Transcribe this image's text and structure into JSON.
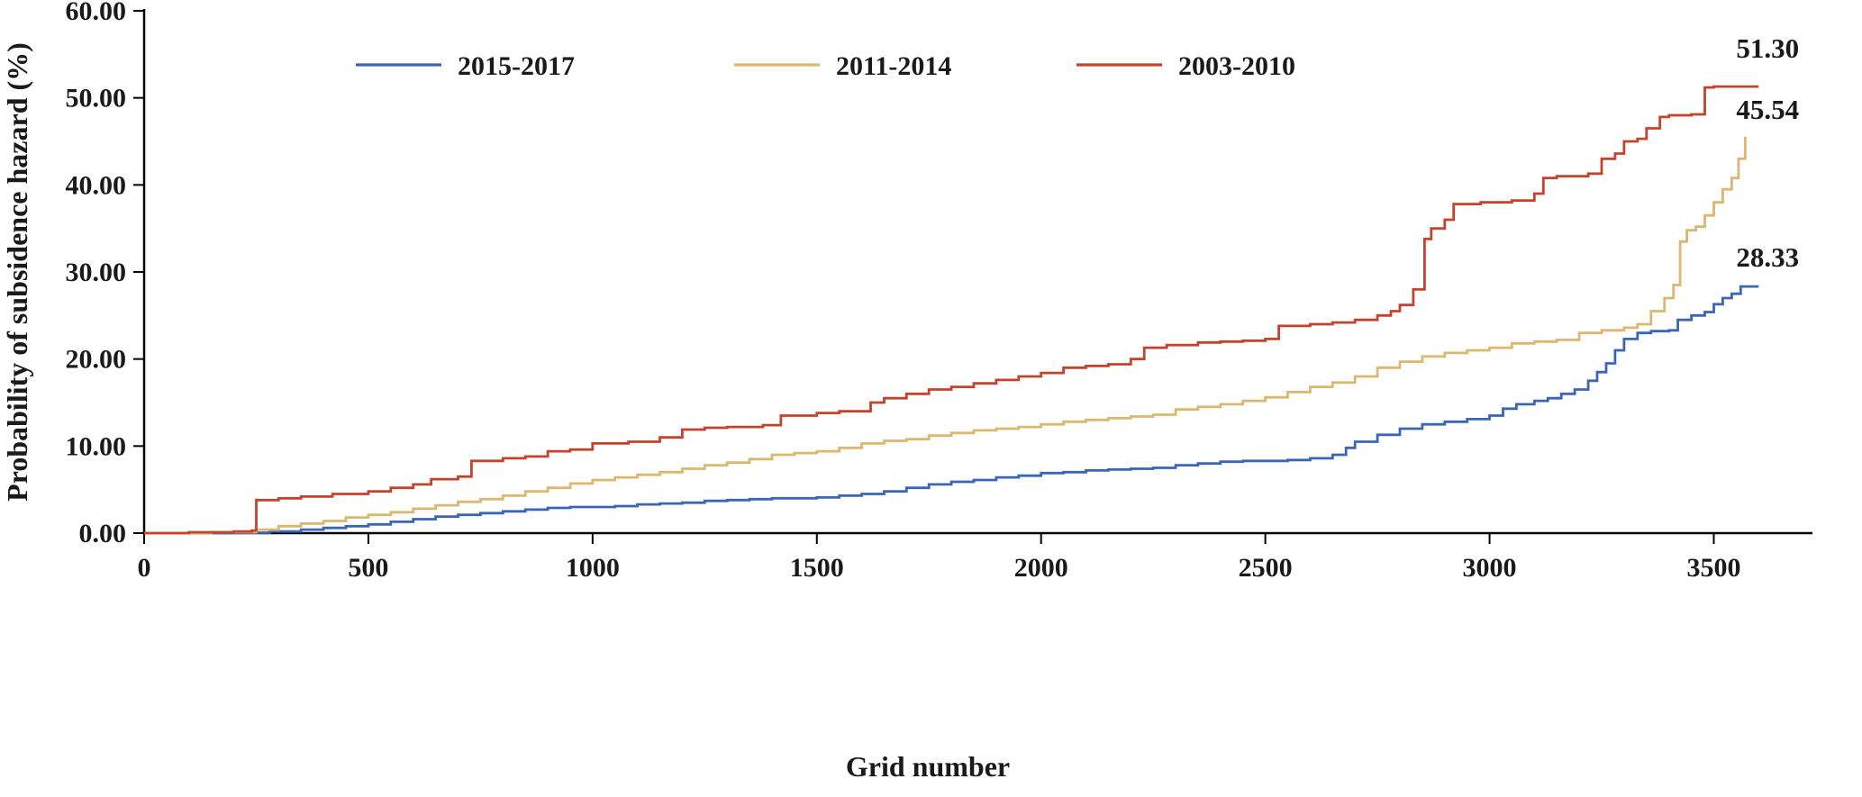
{
  "chart_data": {
    "type": "line",
    "title": "",
    "xlabel": "Grid number",
    "ylabel": "Probability of subsidence hazard (%)",
    "xlim": [
      0,
      3720
    ],
    "ylim": [
      0,
      60
    ],
    "x_ticks": [
      0,
      500,
      1000,
      1500,
      2000,
      2500,
      3000,
      3500
    ],
    "y_ticks": [
      "0.00",
      "10.00",
      "20.00",
      "30.00",
      "40.00",
      "50.00",
      "60.00"
    ],
    "y_tick_values": [
      0,
      10,
      20,
      30,
      40,
      50,
      60
    ],
    "grid": false,
    "legend_position": "top-inside",
    "interpolation": "step-after",
    "series": [
      {
        "name": "2015-2017",
        "color": "#3B66B5",
        "end_label": "28.33",
        "end_label_pos": [
          3620,
          30.6
        ],
        "points": [
          [
            0,
            0
          ],
          [
            200,
            0.05
          ],
          [
            280,
            0.2
          ],
          [
            350,
            0.4
          ],
          [
            400,
            0.6
          ],
          [
            450,
            0.8
          ],
          [
            500,
            1.0
          ],
          [
            550,
            1.3
          ],
          [
            600,
            1.6
          ],
          [
            650,
            1.9
          ],
          [
            700,
            2.1
          ],
          [
            750,
            2.3
          ],
          [
            800,
            2.5
          ],
          [
            850,
            2.7
          ],
          [
            900,
            2.9
          ],
          [
            950,
            3.0
          ],
          [
            1050,
            3.1
          ],
          [
            1100,
            3.3
          ],
          [
            1150,
            3.4
          ],
          [
            1200,
            3.5
          ],
          [
            1250,
            3.7
          ],
          [
            1300,
            3.8
          ],
          [
            1350,
            3.9
          ],
          [
            1400,
            4.0
          ],
          [
            1500,
            4.1
          ],
          [
            1550,
            4.3
          ],
          [
            1600,
            4.5
          ],
          [
            1650,
            4.8
          ],
          [
            1700,
            5.2
          ],
          [
            1750,
            5.6
          ],
          [
            1800,
            5.9
          ],
          [
            1850,
            6.1
          ],
          [
            1900,
            6.4
          ],
          [
            1950,
            6.6
          ],
          [
            2000,
            6.9
          ],
          [
            2050,
            7.0
          ],
          [
            2100,
            7.2
          ],
          [
            2150,
            7.3
          ],
          [
            2200,
            7.4
          ],
          [
            2250,
            7.5
          ],
          [
            2300,
            7.8
          ],
          [
            2350,
            8.0
          ],
          [
            2400,
            8.2
          ],
          [
            2450,
            8.3
          ],
          [
            2550,
            8.4
          ],
          [
            2600,
            8.6
          ],
          [
            2650,
            9.0
          ],
          [
            2680,
            9.8
          ],
          [
            2700,
            10.5
          ],
          [
            2750,
            11.3
          ],
          [
            2800,
            12.0
          ],
          [
            2850,
            12.5
          ],
          [
            2900,
            12.8
          ],
          [
            2950,
            13.1
          ],
          [
            3000,
            13.5
          ],
          [
            3030,
            14.3
          ],
          [
            3060,
            14.8
          ],
          [
            3100,
            15.2
          ],
          [
            3130,
            15.5
          ],
          [
            3160,
            16.0
          ],
          [
            3190,
            16.5
          ],
          [
            3220,
            17.5
          ],
          [
            3240,
            18.5
          ],
          [
            3260,
            19.5
          ],
          [
            3280,
            21.0
          ],
          [
            3300,
            22.3
          ],
          [
            3330,
            23.0
          ],
          [
            3360,
            23.2
          ],
          [
            3400,
            23.3
          ],
          [
            3420,
            24.5
          ],
          [
            3450,
            25.0
          ],
          [
            3480,
            25.4
          ],
          [
            3500,
            26.3
          ],
          [
            3520,
            27.0
          ],
          [
            3540,
            27.5
          ],
          [
            3560,
            28.33
          ],
          [
            3600,
            28.33
          ]
        ]
      },
      {
        "name": "2011-2014",
        "color": "#DCB76F",
        "end_label": "45.54",
        "end_label_pos": [
          3620,
          47.6
        ],
        "points": [
          [
            0,
            0
          ],
          [
            150,
            0.1
          ],
          [
            250,
            0.4
          ],
          [
            300,
            0.8
          ],
          [
            350,
            1.1
          ],
          [
            400,
            1.4
          ],
          [
            450,
            1.8
          ],
          [
            500,
            2.1
          ],
          [
            550,
            2.4
          ],
          [
            600,
            2.8
          ],
          [
            650,
            3.2
          ],
          [
            700,
            3.6
          ],
          [
            750,
            3.9
          ],
          [
            800,
            4.3
          ],
          [
            850,
            4.8
          ],
          [
            900,
            5.2
          ],
          [
            950,
            5.7
          ],
          [
            1000,
            6.1
          ],
          [
            1050,
            6.4
          ],
          [
            1100,
            6.7
          ],
          [
            1150,
            7.0
          ],
          [
            1200,
            7.4
          ],
          [
            1250,
            7.8
          ],
          [
            1300,
            8.1
          ],
          [
            1350,
            8.5
          ],
          [
            1400,
            9.0
          ],
          [
            1450,
            9.2
          ],
          [
            1500,
            9.4
          ],
          [
            1550,
            9.8
          ],
          [
            1600,
            10.3
          ],
          [
            1650,
            10.6
          ],
          [
            1700,
            10.8
          ],
          [
            1750,
            11.2
          ],
          [
            1800,
            11.5
          ],
          [
            1850,
            11.8
          ],
          [
            1900,
            12.0
          ],
          [
            1950,
            12.2
          ],
          [
            2000,
            12.5
          ],
          [
            2050,
            12.8
          ],
          [
            2100,
            13.0
          ],
          [
            2150,
            13.2
          ],
          [
            2200,
            13.4
          ],
          [
            2250,
            13.6
          ],
          [
            2300,
            14.2
          ],
          [
            2350,
            14.5
          ],
          [
            2400,
            14.8
          ],
          [
            2450,
            15.2
          ],
          [
            2500,
            15.6
          ],
          [
            2550,
            16.2
          ],
          [
            2600,
            16.8
          ],
          [
            2650,
            17.3
          ],
          [
            2700,
            18.0
          ],
          [
            2750,
            19.0
          ],
          [
            2800,
            19.7
          ],
          [
            2850,
            20.3
          ],
          [
            2900,
            20.7
          ],
          [
            2950,
            21.0
          ],
          [
            3000,
            21.3
          ],
          [
            3050,
            21.8
          ],
          [
            3100,
            22.0
          ],
          [
            3150,
            22.2
          ],
          [
            3200,
            23.0
          ],
          [
            3250,
            23.3
          ],
          [
            3300,
            23.6
          ],
          [
            3330,
            24.0
          ],
          [
            3360,
            25.5
          ],
          [
            3390,
            27.0
          ],
          [
            3410,
            28.5
          ],
          [
            3425,
            33.5
          ],
          [
            3440,
            34.8
          ],
          [
            3460,
            35.2
          ],
          [
            3480,
            36.5
          ],
          [
            3500,
            38.0
          ],
          [
            3520,
            39.5
          ],
          [
            3540,
            40.8
          ],
          [
            3555,
            43.0
          ],
          [
            3570,
            45.54
          ]
        ]
      },
      {
        "name": "2003-2010",
        "color": "#C5432D",
        "end_label": "51.30",
        "end_label_pos": [
          3620,
          54.6
        ],
        "points": [
          [
            0,
            0
          ],
          [
            100,
            0.1
          ],
          [
            200,
            0.2
          ],
          [
            240,
            0.3
          ],
          [
            250,
            3.8
          ],
          [
            300,
            4.0
          ],
          [
            350,
            4.2
          ],
          [
            420,
            4.5
          ],
          [
            500,
            4.8
          ],
          [
            550,
            5.2
          ],
          [
            600,
            5.6
          ],
          [
            640,
            6.2
          ],
          [
            700,
            6.5
          ],
          [
            730,
            8.3
          ],
          [
            800,
            8.6
          ],
          [
            850,
            8.8
          ],
          [
            900,
            9.4
          ],
          [
            950,
            9.6
          ],
          [
            1000,
            10.3
          ],
          [
            1080,
            10.5
          ],
          [
            1150,
            11.0
          ],
          [
            1200,
            11.9
          ],
          [
            1250,
            12.1
          ],
          [
            1300,
            12.2
          ],
          [
            1380,
            12.4
          ],
          [
            1420,
            13.5
          ],
          [
            1500,
            13.8
          ],
          [
            1550,
            14.0
          ],
          [
            1620,
            15.0
          ],
          [
            1650,
            15.5
          ],
          [
            1700,
            16.0
          ],
          [
            1750,
            16.5
          ],
          [
            1800,
            16.8
          ],
          [
            1850,
            17.2
          ],
          [
            1900,
            17.6
          ],
          [
            1950,
            18.0
          ],
          [
            2000,
            18.4
          ],
          [
            2050,
            19.0
          ],
          [
            2100,
            19.2
          ],
          [
            2150,
            19.4
          ],
          [
            2200,
            20.0
          ],
          [
            2230,
            21.3
          ],
          [
            2280,
            21.6
          ],
          [
            2350,
            21.9
          ],
          [
            2400,
            22.0
          ],
          [
            2450,
            22.1
          ],
          [
            2500,
            22.3
          ],
          [
            2530,
            23.8
          ],
          [
            2600,
            24.0
          ],
          [
            2650,
            24.2
          ],
          [
            2700,
            24.5
          ],
          [
            2750,
            25.0
          ],
          [
            2780,
            25.5
          ],
          [
            2800,
            26.2
          ],
          [
            2830,
            28.0
          ],
          [
            2855,
            33.8
          ],
          [
            2870,
            35.0
          ],
          [
            2900,
            36.0
          ],
          [
            2920,
            37.8
          ],
          [
            2980,
            38.0
          ],
          [
            3050,
            38.2
          ],
          [
            3100,
            39.0
          ],
          [
            3120,
            40.8
          ],
          [
            3150,
            41.0
          ],
          [
            3220,
            41.3
          ],
          [
            3250,
            43.0
          ],
          [
            3280,
            43.6
          ],
          [
            3300,
            45.0
          ],
          [
            3330,
            45.3
          ],
          [
            3350,
            46.5
          ],
          [
            3380,
            47.8
          ],
          [
            3400,
            48.0
          ],
          [
            3450,
            48.1
          ],
          [
            3480,
            51.2
          ],
          [
            3500,
            51.3
          ],
          [
            3600,
            51.3
          ]
        ]
      }
    ],
    "legend": [
      "2015-2017",
      "2011-2014",
      "2003-2010"
    ]
  },
  "layout_hints": {
    "axis_color": "#000000",
    "background": "#ffffff"
  }
}
